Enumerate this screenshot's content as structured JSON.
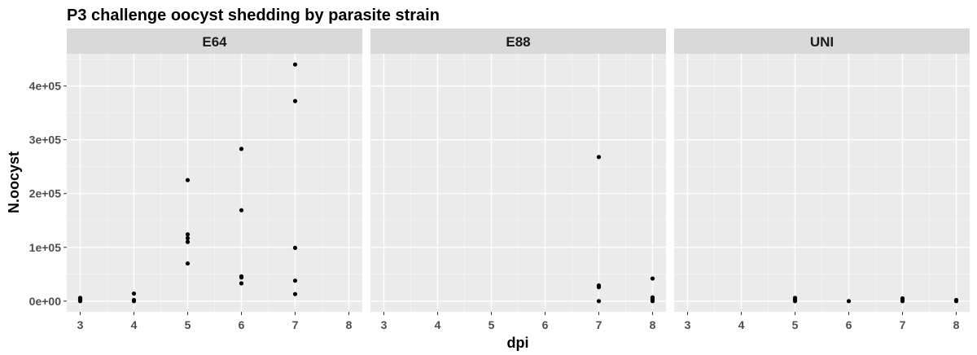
{
  "chart_data": {
    "type": "scatter",
    "title": "P3 challenge oocyst shedding by parasite strain",
    "xlabel": "dpi",
    "ylabel": "N.oocyst",
    "xlim": [
      2.75,
      8.25
    ],
    "ylim": [
      -20000,
      460000
    ],
    "x_ticks": [
      3,
      4,
      5,
      6,
      7,
      8
    ],
    "y_ticks": [
      0,
      100000,
      200000,
      300000,
      400000
    ],
    "y_tick_labels": [
      "0e+00",
      "1e+05",
      "2e+05",
      "3e+05",
      "4e+05"
    ],
    "grid": true,
    "panel_background": "#ebebeb",
    "strip_background": "#d9d9d9",
    "point_color": "#000000",
    "facets": [
      {
        "strip": "E64",
        "points": [
          {
            "x": 3,
            "y": 0
          },
          {
            "x": 3,
            "y": 2000
          },
          {
            "x": 3,
            "y": 4000
          },
          {
            "x": 3,
            "y": 6000
          },
          {
            "x": 4,
            "y": 0
          },
          {
            "x": 4,
            "y": 2000
          },
          {
            "x": 4,
            "y": 14000
          },
          {
            "x": 5,
            "y": 70000
          },
          {
            "x": 5,
            "y": 110000
          },
          {
            "x": 5,
            "y": 117000
          },
          {
            "x": 5,
            "y": 124000
          },
          {
            "x": 5,
            "y": 225000
          },
          {
            "x": 6,
            "y": 33000
          },
          {
            "x": 6,
            "y": 44000
          },
          {
            "x": 6,
            "y": 46000
          },
          {
            "x": 6,
            "y": 169000
          },
          {
            "x": 6,
            "y": 283000
          },
          {
            "x": 7,
            "y": 13000
          },
          {
            "x": 7,
            "y": 38000
          },
          {
            "x": 7,
            "y": 99000
          },
          {
            "x": 7,
            "y": 372000
          },
          {
            "x": 7,
            "y": 440000
          }
        ]
      },
      {
        "strip": "E88",
        "points": [
          {
            "x": 7,
            "y": 0
          },
          {
            "x": 7,
            "y": 26000
          },
          {
            "x": 7,
            "y": 29000
          },
          {
            "x": 7,
            "y": 268000
          },
          {
            "x": 8,
            "y": 0
          },
          {
            "x": 8,
            "y": 3000
          },
          {
            "x": 8,
            "y": 5000
          },
          {
            "x": 8,
            "y": 7000
          },
          {
            "x": 8,
            "y": 42000
          }
        ]
      },
      {
        "strip": "UNI",
        "points": [
          {
            "x": 5,
            "y": 0
          },
          {
            "x": 5,
            "y": 3000
          },
          {
            "x": 5,
            "y": 6000
          },
          {
            "x": 6,
            "y": 0
          },
          {
            "x": 7,
            "y": 0
          },
          {
            "x": 7,
            "y": 2000
          },
          {
            "x": 7,
            "y": 5000
          },
          {
            "x": 8,
            "y": 0
          },
          {
            "x": 8,
            "y": 2000
          }
        ]
      }
    ]
  }
}
